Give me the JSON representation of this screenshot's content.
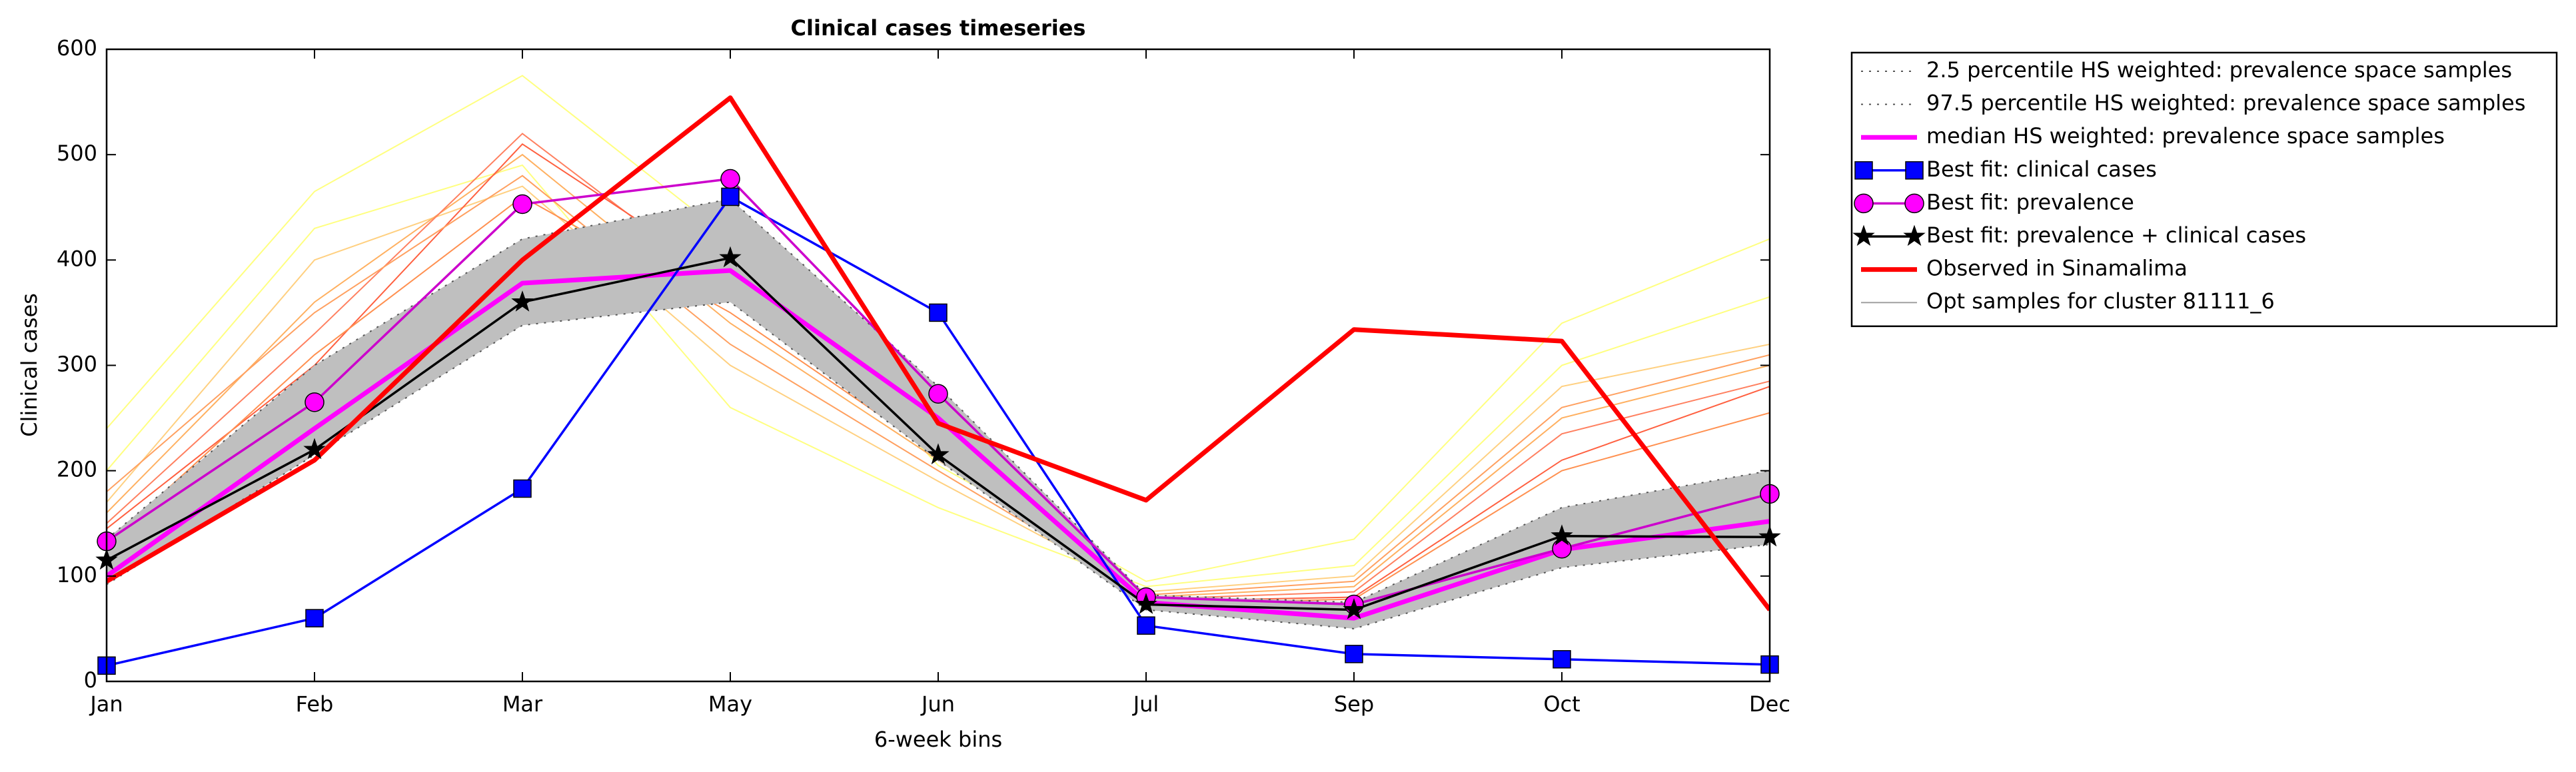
{
  "chart_data": {
    "type": "line",
    "title": "Clinical cases timeseries",
    "xlabel": "6-week bins",
    "ylabel": "Clinical cases",
    "categories": [
      "Jan",
      "Feb",
      "Mar",
      "May",
      "Jun",
      "Jul",
      "Sep",
      "Oct",
      "Dec"
    ],
    "ylim": [
      0,
      600
    ],
    "yticks": [
      0,
      100,
      200,
      300,
      400,
      500,
      600
    ],
    "legend": "outside-upper-right",
    "band_color": "#bfbfbf",
    "series": [
      {
        "name": "2.5 percentile HS weighted: prevalence space samples",
        "color": "#555555",
        "style": "dotted",
        "width": 2,
        "values": [
          92,
          215,
          338,
          360,
          210,
          68,
          50,
          108,
          130
        ]
      },
      {
        "name": "97.5 percentile HS weighted: prevalence space samples",
        "color": "#555555",
        "style": "dotted",
        "width": 2,
        "values": [
          135,
          300,
          420,
          458,
          280,
          82,
          75,
          165,
          200
        ]
      },
      {
        "name": "median HS weighted: prevalence space samples",
        "color": "#ff00ff",
        "style": "solid",
        "width": 7,
        "values": [
          100,
          240,
          378,
          390,
          250,
          75,
          60,
          125,
          152
        ]
      },
      {
        "name": "Best fit: clinical cases",
        "color": "#0000ff",
        "style": "solid",
        "width": 3.5,
        "marker": "square",
        "values": [
          15,
          60,
          183,
          460,
          350,
          53,
          26,
          21,
          16
        ]
      },
      {
        "name": "Best fit: prevalence",
        "color": "#cc00cc",
        "marker_color": "#ff00ff",
        "style": "solid",
        "width": 3.5,
        "marker": "circle",
        "values": [
          133,
          265,
          453,
          477,
          273,
          80,
          73,
          126,
          178
        ]
      },
      {
        "name": "Best fit: prevalence + clinical cases",
        "color": "#000000",
        "style": "solid",
        "width": 3.5,
        "marker": "star",
        "values": [
          115,
          220,
          360,
          402,
          215,
          73,
          68,
          138,
          137
        ]
      },
      {
        "name": "Observed in Sinamalima",
        "color": "#ff0000",
        "style": "solid",
        "width": 7,
        "values": [
          95,
          210,
          400,
          554,
          245,
          172,
          334,
          323,
          68
        ]
      }
    ],
    "samples": {
      "name": "Opt samples for cluster 81111_6",
      "legend_color": "#a0a0a0",
      "width": 2,
      "lines": [
        {
          "color": "#ffff80",
          "values": [
            240,
            465,
            575,
            420,
            205,
            95,
            135,
            340,
            420
          ]
        },
        {
          "color": "#ffff80",
          "values": [
            200,
            430,
            490,
            260,
            165,
            90,
            110,
            300,
            365
          ]
        },
        {
          "color": "#ffd080",
          "values": [
            170,
            400,
            470,
            300,
            190,
            85,
            100,
            280,
            320
          ]
        },
        {
          "color": "#ffb060",
          "values": [
            160,
            360,
            500,
            340,
            210,
            80,
            90,
            250,
            300
          ]
        },
        {
          "color": "#ff8060",
          "values": [
            150,
            330,
            520,
            370,
            230,
            78,
            85,
            235,
            285
          ]
        },
        {
          "color": "#ff6040",
          "values": [
            145,
            300,
            510,
            380,
            220,
            76,
            80,
            210,
            280
          ]
        },
        {
          "color": "#ffa060",
          "values": [
            180,
            350,
            480,
            320,
            200,
            82,
            95,
            260,
            310
          ]
        },
        {
          "color": "#ff9050",
          "values": [
            130,
            310,
            460,
            350,
            215,
            74,
            78,
            200,
            255
          ]
        }
      ]
    }
  }
}
